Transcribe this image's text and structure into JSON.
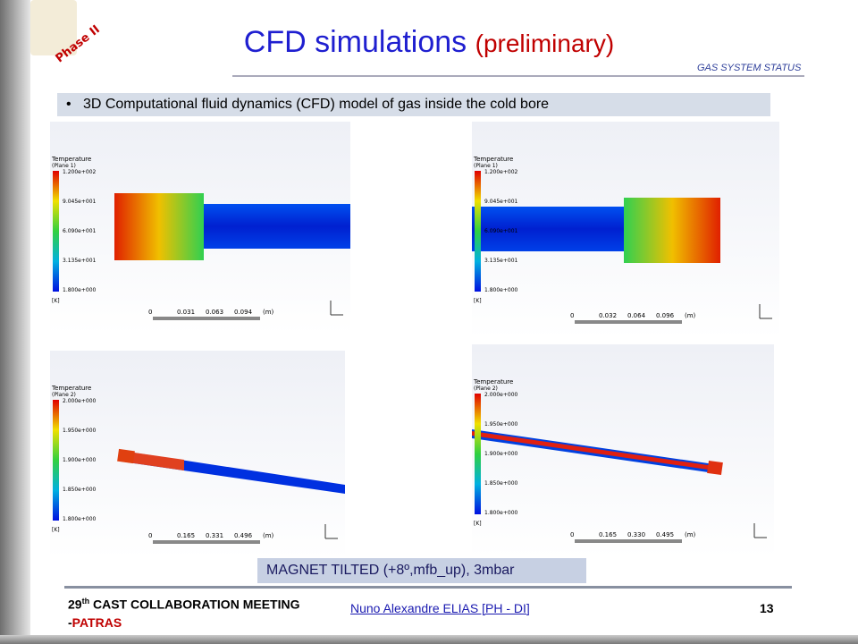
{
  "header": {
    "logo_text": "Phase II",
    "title": "CFD simulations",
    "title_suffix": "(preliminary)",
    "section": "GAS SYSTEM STATUS"
  },
  "bullet": "3D Computational fluid dynamics (CFD) model of gas inside the cold bore",
  "panels": [
    {
      "legend_title": "Temperature",
      "legend_subtitle": "(Plane 1)",
      "legend_values": [
        "1.200e+002",
        "9.045e+001",
        "6.090e+001",
        "3.135e+001",
        "1.800e+000"
      ],
      "unit": "[K]",
      "scale": [
        "0",
        "0.031",
        "0.063",
        "0.094",
        "(m)"
      ]
    },
    {
      "legend_title": "Temperature",
      "legend_subtitle": "(Plane 1)",
      "legend_values": [
        "1.200e+002",
        "9.045e+001",
        "6.090e+001",
        "3.135e+001",
        "1.800e+000"
      ],
      "unit": "[K]",
      "scale": [
        "0",
        "0.032",
        "0.064",
        "0.096",
        "(m)"
      ]
    },
    {
      "legend_title": "Temperature",
      "legend_subtitle": "(Plane 2)",
      "legend_values": [
        "2.000e+000",
        "1.950e+000",
        "1.900e+000",
        "1.850e+000",
        "1.800e+000"
      ],
      "unit": "[K]",
      "scale": [
        "0",
        "0.165",
        "0.331",
        "0.496",
        "(m)"
      ]
    },
    {
      "legend_title": "Temperature",
      "legend_subtitle": "(Plane 2)",
      "legend_values": [
        "2.000e+000",
        "1.950e+000",
        "1.900e+000",
        "1.850e+000",
        "1.800e+000"
      ],
      "unit": "[K]",
      "scale": [
        "0",
        "0.165",
        "0.330",
        "0.495",
        "(m)"
      ]
    }
  ],
  "caption": "MAGNET TILTED (+8º,mfb_up), 3mbar",
  "footer": {
    "meeting_num": "29",
    "meeting_sup": "th",
    "meeting": "CAST COLLABORATION MEETING -",
    "place": "PATRAS",
    "author": "Nuno Alexandre ELIAS [PH - DI]",
    "page": "13"
  }
}
